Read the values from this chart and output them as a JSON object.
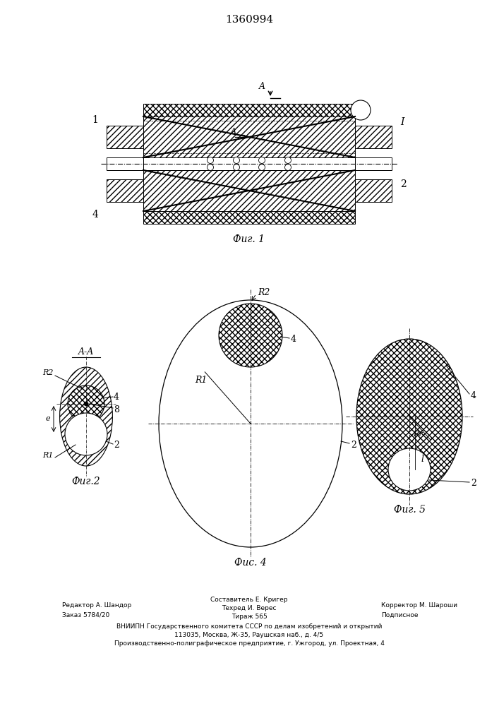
{
  "patent_number": "1360994",
  "fig1_label": "Фиг. 1",
  "fig2_label": "Фиг.2",
  "fig4_label": "Фис. 4",
  "fig5_label": "Фиг. 5",
  "section_label": "A-A",
  "arrow_label": "A",
  "label_1": "1",
  "label_2": "2",
  "label_4": "4",
  "label_I": "I",
  "label_8": "8",
  "label_R1": "R1",
  "label_R2": "R2",
  "label_Rr": "Rr",
  "label_l": "l",
  "label_e": "e",
  "footer_col1_line1": "Редактор А. Шандор",
  "footer_col1_line2": "Заказ 5784/20",
  "footer_col2_line1": "Составитель Е. Кригер",
  "footer_col2_line2": "Техред И. Верес",
  "footer_col2_line3": "Тираж 565",
  "footer_col3_line1": "Корректор М. Шароши",
  "footer_col3_line2": "Подписное",
  "footer_vniipn": "ВНИИПН Государственного комитета СССР по делам изобретений и открытий",
  "footer_address1": "113035, Москва, Ж-35, Раушская наб., д. 4/5",
  "footer_address2": "Производственно-полиграфическое предприятие, г. Ужгород, ул. Проектная, 4",
  "bg_color": "#ffffff",
  "line_color": "#000000"
}
